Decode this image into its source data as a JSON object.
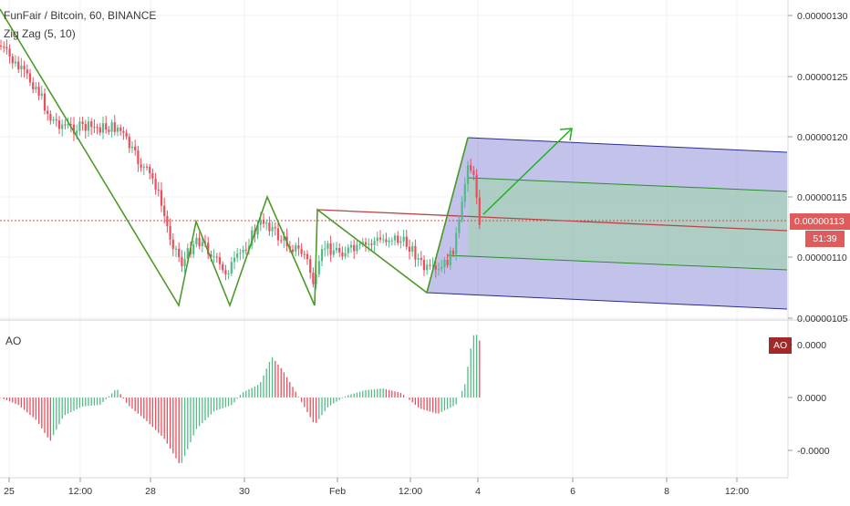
{
  "header": {
    "title": "FunFair / Bitcoin, 60, BINANCE",
    "indicator": "Zig Zag (5, 10)",
    "ao_label": "AO"
  },
  "price_axis": {
    "ticks": [
      "0.00000130",
      "0.00000125",
      "0.00000120",
      "0.00000115",
      "0.00000110",
      "0.00000105"
    ],
    "current_price": "0.00000113",
    "bar_timer": "51:39"
  },
  "ao_axis": {
    "ticks": [
      "0.0000",
      "0.0000",
      "-0.0000"
    ],
    "tag": "AO"
  },
  "time_axis": {
    "ticks": [
      "25",
      "12:00",
      "28",
      "30",
      "Feb",
      "12:00",
      "4",
      "6",
      "8",
      "12:00"
    ]
  },
  "colors": {
    "up": "#53b987",
    "down": "#eb4d5c",
    "zigzag": "#4c9a28",
    "pitchfork_median": "#b84444",
    "pitchfork_outer": "#2c2c8c",
    "fill_blue": "rgba(120,120,210,0.45)",
    "fill_green": "rgba(150,220,150,0.45)",
    "current_line": "#e04848"
  },
  "chart_data": [
    {
      "type": "bar",
      "title": "FunFair / Bitcoin, 60, BINANCE",
      "series": [
        {
          "name": "FunFair / Bitcoin",
          "ohlc_approx": [
            {
              "time": "25",
              "close": 1.27e-06
            },
            {
              "time": "12:00",
              "close": 1.21e-06
            },
            {
              "time": "28",
              "close": 1.11e-06
            },
            {
              "time": "30",
              "close": 1.11e-06
            },
            {
              "time": "Feb",
              "close": 1.1e-06
            },
            {
              "time": "12:00",
              "close": 1.11e-06
            },
            {
              "time": "4",
              "close": 1.13e-06
            }
          ]
        },
        {
          "name": "Zig Zag (5, 10)",
          "pivots": [
            1.3e-06,
            1.06e-06,
            1.13e-06,
            1.06e-06,
            1.13e-06,
            1.06e-06,
            1.15e-06,
            1.06e-06,
            1.14e-06,
            1.07e-06,
            1.2e-06
          ]
        }
      ],
      "ylim": [
        1.045e-06,
        1.31e-06
      ],
      "xlim": [
        "25",
        "12:00"
      ],
      "current_price": 1.13e-06
    },
    {
      "type": "bar",
      "title": "AO",
      "series": [
        {
          "name": "AO",
          "values_approx": [
            0,
            -0.3,
            -0.6,
            -0.9,
            -0.4,
            -0.1,
            0.1,
            -0.5,
            -1.2,
            -2.0,
            -0.8,
            -0.2,
            0.1,
            0.4,
            0.8,
            0.2,
            -0.2,
            -0.7,
            -0.2,
            0.1,
            0.2,
            0.1,
            -0.2,
            -0.5,
            -0.3,
            0.1,
            1.0,
            1.8
          ]
        }
      ]
    }
  ]
}
